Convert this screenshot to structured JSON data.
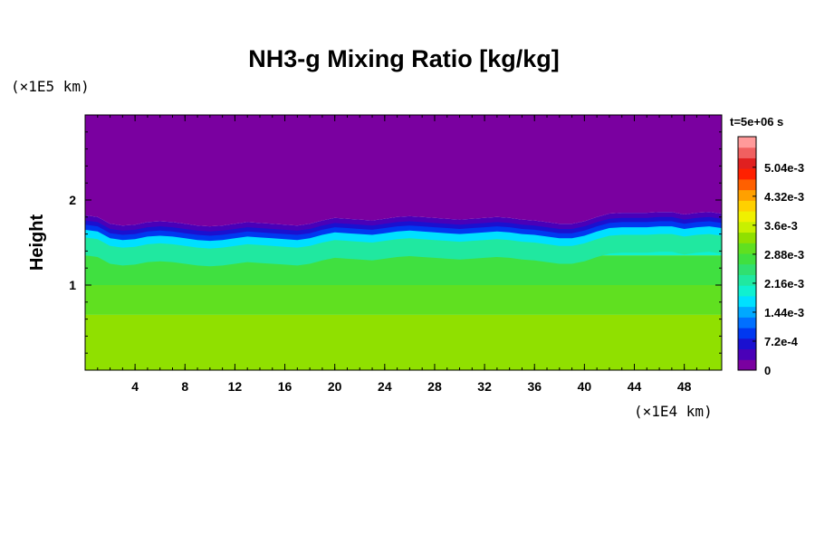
{
  "chart_data": {
    "type": "heatmap",
    "title": "NH3-g Mixing Ratio [kg/kg]",
    "ylabel": "Height",
    "x_unit": "(×1E4 km)",
    "y_unit": "(×1E5 km)",
    "time_label": "t=5e+06 s",
    "xlim": [
      0,
      51
    ],
    "ylim": [
      0,
      3
    ],
    "x_ticks": [
      4,
      8,
      12,
      16,
      20,
      24,
      28,
      32,
      36,
      40,
      44,
      48
    ],
    "y_ticks": [
      1,
      2
    ],
    "x_minor_step": 1,
    "y_minor_step": 0.2,
    "colorbar": {
      "min": 0,
      "max": 0.0058,
      "labels": [
        "5.04e-3",
        "4.32e-3",
        "3.6e-3",
        "2.88e-3",
        "2.16e-3",
        "1.44e-3",
        "7.2e-4",
        "0"
      ],
      "label_values": [
        0.00504,
        0.00432,
        0.0036,
        0.00288,
        0.00216,
        0.00144,
        0.00072,
        0
      ],
      "colors": [
        "#7a00a0",
        "#4a00b8",
        "#1a10d0",
        "#0038f0",
        "#0070ff",
        "#00a8ff",
        "#00e0ff",
        "#10f0d0",
        "#20e8a0",
        "#30e070",
        "#40e040",
        "#60e020",
        "#90e000",
        "#c8f000",
        "#f0f000",
        "#ffd000",
        "#ffa000",
        "#ff6000",
        "#ff2000",
        "#e02020",
        "#f06060",
        "#ff9a9a"
      ]
    },
    "fields": {
      "upper_value": 0,
      "lower_value": 0.0034,
      "layers": [
        {
          "from_height": 0,
          "to_height": 0.65,
          "value": 0.0034
        },
        {
          "from_height": 0.65,
          "to_height": 1.0,
          "value": 0.003
        },
        {
          "from_height": 1.0,
          "to_height": 1.35,
          "value": 0.0027
        },
        {
          "from_height": 1.35,
          "to_height": 1.55,
          "value": 0.002
        }
      ],
      "boundary_height": [
        1.8,
        1.78,
        1.7,
        1.68,
        1.69,
        1.72,
        1.73,
        1.72,
        1.7,
        1.68,
        1.67,
        1.68,
        1.7,
        1.72,
        1.71,
        1.7,
        1.69,
        1.68,
        1.7,
        1.74,
        1.77,
        1.76,
        1.75,
        1.74,
        1.76,
        1.78,
        1.79,
        1.78,
        1.77,
        1.76,
        1.75,
        1.76,
        1.77,
        1.78,
        1.77,
        1.75,
        1.74,
        1.72,
        1.7,
        1.7,
        1.73,
        1.78,
        1.82,
        1.83,
        1.83,
        1.83,
        1.84,
        1.84,
        1.81,
        1.83,
        1.84,
        1.82
      ]
    }
  }
}
